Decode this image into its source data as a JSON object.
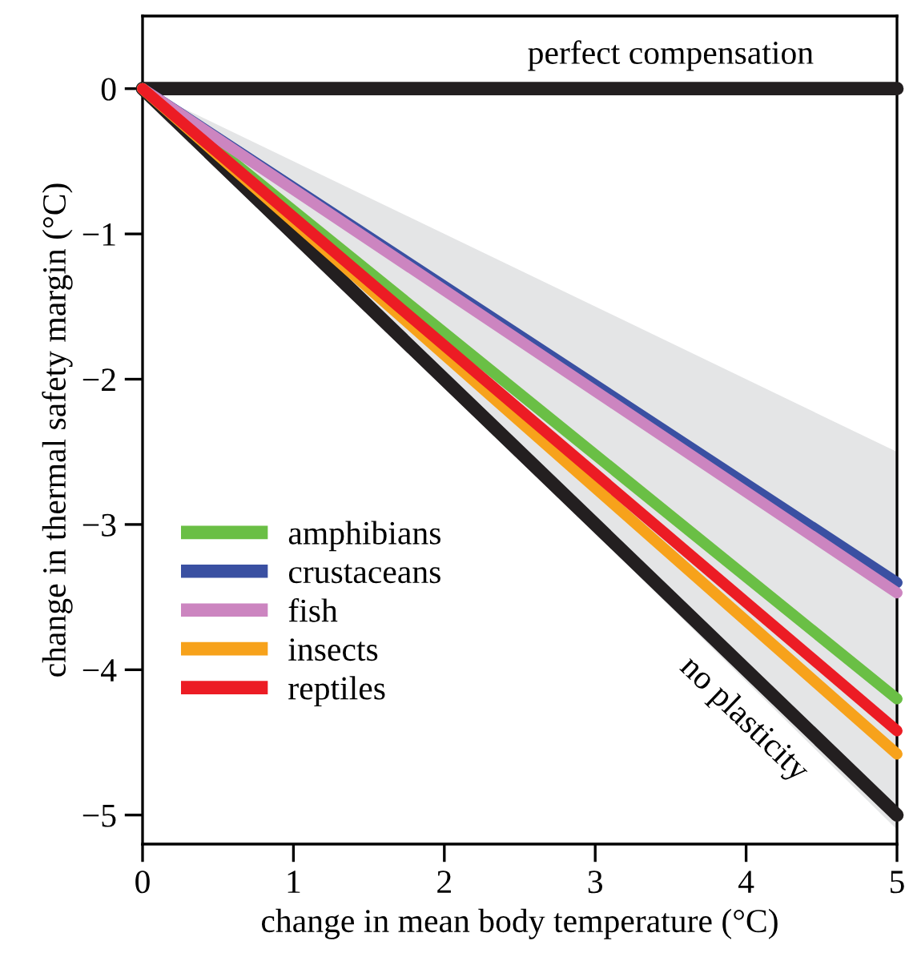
{
  "chart_data": {
    "type": "line",
    "xlabel": "change in mean body temperature (°C)",
    "ylabel": "change in thermal safety margin (°C)",
    "x": [
      0,
      5
    ],
    "xlim": [
      0,
      5
    ],
    "ylim": [
      -5.2,
      0.5
    ],
    "xticks": [
      0,
      1,
      2,
      3,
      4,
      5
    ],
    "yticks": [
      {
        "value": 0,
        "label": "0"
      },
      {
        "value": -1,
        "label": "−1"
      },
      {
        "value": -2,
        "label": "−2"
      },
      {
        "value": -3,
        "label": "−3"
      },
      {
        "value": -4,
        "label": "−4"
      },
      {
        "value": -5,
        "label": "−5"
      }
    ],
    "series": [
      {
        "color": "#231f20",
        "values": [
          0,
          0
        ]
      },
      {
        "color": "#231f20",
        "values": [
          0,
          -5
        ],
        "lower": [
          0,
          -5.1
        ],
        "upper": [
          0,
          -2.5
        ]
      },
      {
        "name": "amphibians",
        "color": "#6abf45",
        "values": [
          0,
          -4.2
        ]
      },
      {
        "name": "crustaceans",
        "color": "#3a50a2",
        "values": [
          0,
          -3.4
        ]
      },
      {
        "name": "fish",
        "color": "#cc85c0",
        "values": [
          0,
          -3.47
        ]
      },
      {
        "name": "insects",
        "color": "#f7a21b",
        "values": [
          0,
          -4.58
        ]
      },
      {
        "name": "reptiles",
        "color": "#ec1c24",
        "values": [
          0,
          -4.42
        ]
      }
    ],
    "annotations": [
      "perfect compensation",
      "no plasticity"
    ],
    "legend": "bottom left",
    "grid": false
  }
}
